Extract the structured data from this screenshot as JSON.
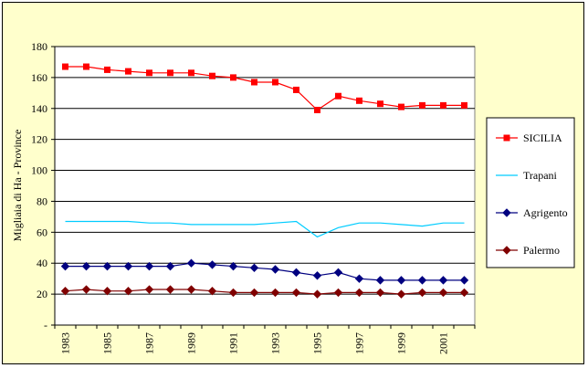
{
  "chart_data": {
    "type": "line",
    "ylabel": "Migliaia di Ha - Province",
    "ylim": [
      0,
      180
    ],
    "ytick_step": 20,
    "ytick_labels": [
      "-",
      "20",
      "40",
      "60",
      "80",
      "100",
      "120",
      "140",
      "160",
      "180"
    ],
    "x": [
      1983,
      1984,
      1985,
      1986,
      1987,
      1988,
      1989,
      1990,
      1991,
      1992,
      1993,
      1994,
      1995,
      1996,
      1997,
      1998,
      1999,
      2000,
      2001,
      2002
    ],
    "xtick_labels": [
      "1983",
      "1985",
      "1987",
      "1989",
      "1991",
      "1993",
      "1995",
      "1997",
      "1999",
      "2001"
    ],
    "grid": true,
    "legend_position": "right",
    "series": [
      {
        "name": "SICILIA",
        "color": "#ff0000",
        "marker": "square",
        "values": [
          167,
          167,
          165,
          164,
          163,
          163,
          163,
          161,
          160,
          157,
          157,
          152,
          139,
          148,
          145,
          143,
          141,
          142,
          142,
          142
        ]
      },
      {
        "name": "Trapani",
        "color": "#00ccff",
        "marker": "none",
        "values": [
          67,
          67,
          67,
          67,
          66,
          66,
          65,
          65,
          65,
          65,
          66,
          67,
          57,
          63,
          66,
          66,
          65,
          64,
          66,
          66
        ]
      },
      {
        "name": "Agrigento",
        "color": "#000080",
        "marker": "diamond",
        "values": [
          38,
          38,
          38,
          38,
          38,
          38,
          40,
          39,
          38,
          37,
          36,
          34,
          32,
          34,
          30,
          29,
          29,
          29,
          29,
          29
        ]
      },
      {
        "name": "Palermo",
        "color": "#800000",
        "marker": "diamond",
        "values": [
          22,
          23,
          22,
          22,
          23,
          23,
          23,
          22,
          21,
          21,
          21,
          21,
          20,
          21,
          21,
          21,
          20,
          21,
          21,
          21
        ]
      }
    ]
  }
}
